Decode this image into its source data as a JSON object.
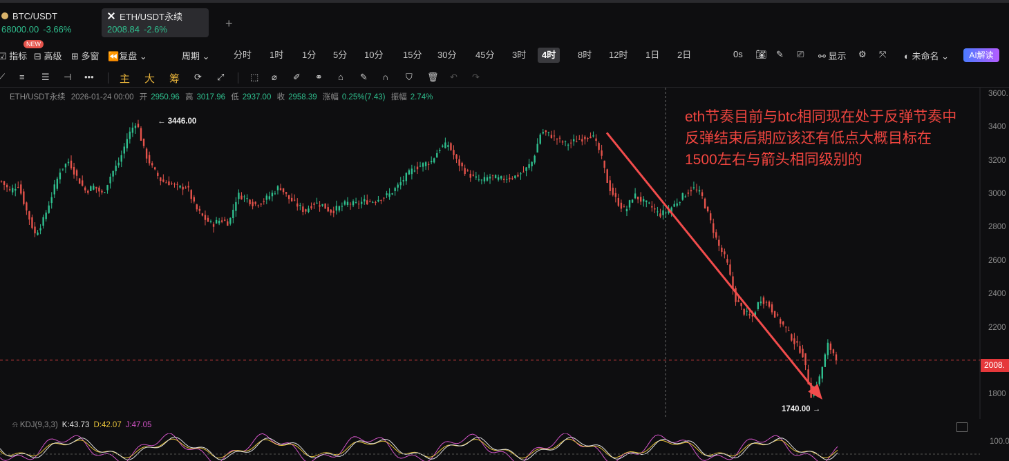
{
  "tabs": [
    {
      "pair": "BTC/USDT",
      "price": "68000.00",
      "change": "-3.66%",
      "icon": "btc-coin-icon"
    },
    {
      "pair": "ETH/USDT永续",
      "price": "2008.84",
      "change": "-2.6%",
      "icon": "eth-coin-icon"
    }
  ],
  "new_badge": "NEW",
  "toolbar": {
    "indicators": "指标",
    "advanced": "高级",
    "multi_window": "多窗",
    "replay": "复盘",
    "period": "周期",
    "timeframes": [
      "分时",
      "1时",
      "1分",
      "5分",
      "10分",
      "15分",
      "30分",
      "45分",
      "3时",
      "4时",
      "8时",
      "12时",
      "1日",
      "2日"
    ],
    "active_timeframe": "4时",
    "countdown": "0s",
    "display": "显示",
    "unnamed": "未命名",
    "ai": "AI解读"
  },
  "drawing_bar": {
    "main": "主",
    "big": "大",
    "chip": "筹"
  },
  "info": {
    "symbol": "ETH/USDT永续",
    "time": "2026-01-24 00:00",
    "open_label": "开",
    "open": "2950.96",
    "high_label": "高",
    "high": "3017.96",
    "low_label": "低",
    "low": "2937.00",
    "close_label": "收",
    "close": "2958.39",
    "change_label": "涨幅",
    "change": "0.25%(7.43)",
    "amp_label": "振幅",
    "amp": "2.74%"
  },
  "kdj": {
    "label": "KDJ(9,3,3)",
    "k": "K:43.73",
    "d": "D:42.07",
    "j": "J:47.05"
  },
  "annotation": [
    "eth节奏目前与btc相同现在处于反弹节奏中",
    "反弹结束后期应该还有低点大概目标在",
    "1500左右与箭头相同级别的"
  ],
  "current_price_tag": "2008.",
  "high_label": "← 3446.00",
  "low_label": "1740.00 →",
  "colors": {
    "up": "#2fbf8e",
    "down": "#e5534b",
    "annotation": "#f0453f",
    "background": "#0e0e10"
  },
  "chart_data": {
    "type": "candlestick",
    "y_axis_ticks": [
      1800,
      2000,
      2200,
      2400,
      2600,
      2800,
      3000,
      3200,
      3400,
      3600
    ],
    "y_axis_labels": [
      "1800",
      "2000",
      "2200",
      "2400",
      "2600",
      "2800",
      "3000",
      "3200",
      "3400",
      "3600."
    ],
    "ylim": [
      1740,
      3640
    ],
    "current_price": 2008.84,
    "high_point": 3446,
    "low_point": 1740,
    "indicator_axis_label": "100.0",
    "trend_path": [
      3080,
      3020,
      3060,
      2900,
      2760,
      2850,
      3000,
      3150,
      3200,
      3100,
      3020,
      3050,
      3000,
      3120,
      3200,
      3350,
      3440,
      3250,
      3150,
      3080,
      3070,
      3040,
      3050,
      2920,
      2860,
      2820,
      2850,
      2830,
      3000,
      2980,
      2940,
      2960,
      3000,
      3050,
      2980,
      2940,
      2900,
      2950,
      2940,
      2900,
      2920,
      2950,
      2940,
      2960,
      2960,
      2980,
      3000,
      3050,
      3110,
      3160,
      3180,
      3200,
      3280,
      3300,
      3200,
      3140,
      3100,
      3080,
      3110,
      3090,
      3100,
      3110,
      3140,
      3200,
      3380,
      3360,
      3330,
      3300,
      3320,
      3340,
      3360,
      3250,
      3050,
      2960,
      2900,
      3000,
      2960,
      2930,
      2880,
      2900,
      2950,
      3000,
      3040,
      3000,
      2850,
      2700,
      2600,
      2380,
      2300,
      2260,
      2380,
      2340,
      2260,
      2200,
      2120,
      2050,
      1800,
      1900,
      2100,
      2030
    ],
    "arrow": {
      "from": [
        3370,
        0.877
      ],
      "to": [
        1740,
        0.815
      ]
    }
  }
}
